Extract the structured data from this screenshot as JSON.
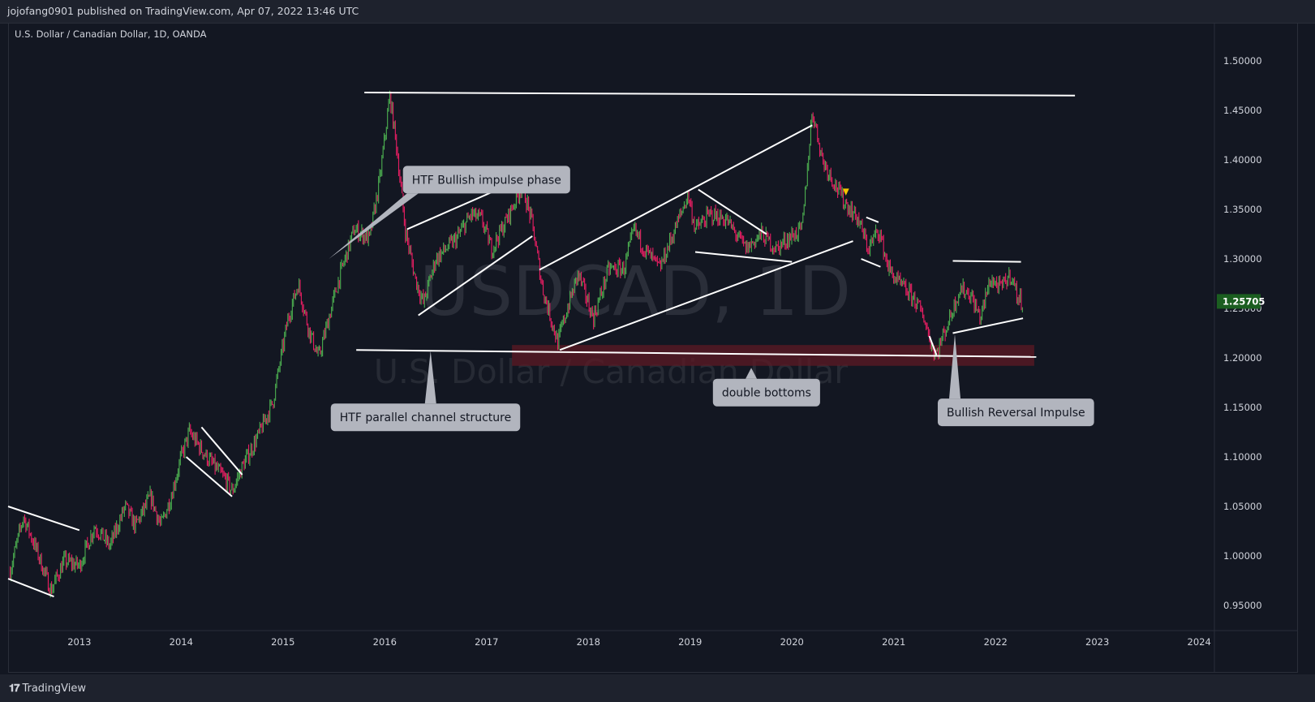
{
  "header": {
    "publish_line": "jojofang0901 published on TradingView.com, Apr 07, 2022 13:46 UTC"
  },
  "chart_header": {
    "symbol_title": "U.S. Dollar / Canadian Dollar, 1D, OANDA"
  },
  "watermark": {
    "symbol": "USDCAD, 1D",
    "description": "U.S. Dollar / Canadian Dollar"
  },
  "footer": {
    "brand": "TradingView",
    "brand_icon": "tradingview-logo-icon"
  },
  "colors": {
    "background": "#131722",
    "up_candle": "#4caf50",
    "down_candle": "#e91e63",
    "drawing": "#ffffff",
    "price_badge": "#1b5e20",
    "zone": "#5d1a24",
    "callout_bg": "#b2b5be",
    "callout_text": "#131722"
  },
  "chart_data": {
    "type": "candlestick",
    "symbol": "USDCAD",
    "timeframe": "1D",
    "x_axis": {
      "range": [
        2012.3,
        2024.15
      ],
      "tick_labels": [
        "2013",
        "2014",
        "2015",
        "2016",
        "2017",
        "2018",
        "2019",
        "2020",
        "2021",
        "2022",
        "2023",
        "2024"
      ]
    },
    "y_axis": {
      "range": [
        0.925,
        1.545
      ],
      "tick_labels": [
        "1.50000",
        "1.45000",
        "1.40000",
        "1.35000",
        "1.30000",
        "1.25000",
        "1.20000",
        "1.15000",
        "1.10000",
        "1.05000",
        "1.00000",
        "0.95000"
      ]
    },
    "last_price": "1.25705",
    "path": [
      [
        2012.32,
        0.985
      ],
      [
        2012.45,
        1.04
      ],
      [
        2012.6,
        1.0
      ],
      [
        2012.72,
        0.965
      ],
      [
        2012.85,
        0.995
      ],
      [
        2013.0,
        0.99
      ],
      [
        2013.15,
        1.03
      ],
      [
        2013.3,
        1.01
      ],
      [
        2013.45,
        1.05
      ],
      [
        2013.55,
        1.03
      ],
      [
        2013.7,
        1.06
      ],
      [
        2013.8,
        1.03
      ],
      [
        2013.9,
        1.06
      ],
      [
        2014.0,
        1.1
      ],
      [
        2014.08,
        1.125
      ],
      [
        2014.25,
        1.1
      ],
      [
        2014.45,
        1.075
      ],
      [
        2014.5,
        1.065
      ],
      [
        2014.6,
        1.09
      ],
      [
        2014.75,
        1.12
      ],
      [
        2014.9,
        1.155
      ],
      [
        2015.05,
        1.24
      ],
      [
        2015.15,
        1.275
      ],
      [
        2015.25,
        1.23
      ],
      [
        2015.35,
        1.2
      ],
      [
        2015.45,
        1.24
      ],
      [
        2015.55,
        1.28
      ],
      [
        2015.7,
        1.33
      ],
      [
        2015.85,
        1.32
      ],
      [
        2015.95,
        1.38
      ],
      [
        2016.05,
        1.465
      ],
      [
        2016.12,
        1.41
      ],
      [
        2016.2,
        1.33
      ],
      [
        2016.3,
        1.28
      ],
      [
        2016.38,
        1.255
      ],
      [
        2016.5,
        1.3
      ],
      [
        2016.6,
        1.31
      ],
      [
        2016.7,
        1.32
      ],
      [
        2016.85,
        1.345
      ],
      [
        2016.95,
        1.34
      ],
      [
        2017.05,
        1.31
      ],
      [
        2017.2,
        1.34
      ],
      [
        2017.35,
        1.375
      ],
      [
        2017.45,
        1.335
      ],
      [
        2017.55,
        1.27
      ],
      [
        2017.7,
        1.215
      ],
      [
        2017.75,
        1.235
      ],
      [
        2017.9,
        1.285
      ],
      [
        2018.05,
        1.24
      ],
      [
        2018.2,
        1.29
      ],
      [
        2018.35,
        1.29
      ],
      [
        2018.45,
        1.33
      ],
      [
        2018.55,
        1.31
      ],
      [
        2018.7,
        1.29
      ],
      [
        2018.85,
        1.33
      ],
      [
        2018.98,
        1.365
      ],
      [
        2019.05,
        1.33
      ],
      [
        2019.2,
        1.345
      ],
      [
        2019.35,
        1.34
      ],
      [
        2019.55,
        1.31
      ],
      [
        2019.7,
        1.325
      ],
      [
        2019.85,
        1.31
      ],
      [
        2019.95,
        1.32
      ],
      [
        2020.1,
        1.33
      ],
      [
        2020.2,
        1.45
      ],
      [
        2020.3,
        1.4
      ],
      [
        2020.4,
        1.38
      ],
      [
        2020.5,
        1.36
      ],
      [
        2020.65,
        1.34
      ],
      [
        2020.75,
        1.31
      ],
      [
        2020.85,
        1.33
      ],
      [
        2020.95,
        1.29
      ],
      [
        2021.05,
        1.275
      ],
      [
        2021.2,
        1.26
      ],
      [
        2021.3,
        1.24
      ],
      [
        2021.38,
        1.21
      ],
      [
        2021.42,
        1.205
      ],
      [
        2021.55,
        1.24
      ],
      [
        2021.65,
        1.27
      ],
      [
        2021.75,
        1.265
      ],
      [
        2021.85,
        1.24
      ],
      [
        2021.95,
        1.28
      ],
      [
        2022.05,
        1.27
      ],
      [
        2022.15,
        1.285
      ],
      [
        2022.22,
        1.26
      ],
      [
        2022.27,
        1.257
      ]
    ],
    "drawings": [
      {
        "kind": "line",
        "from": [
          2015.8,
          1.468
        ],
        "to": [
          2022.78,
          1.465
        ]
      },
      {
        "kind": "line",
        "from": [
          2015.72,
          1.208
        ],
        "to": [
          2022.4,
          1.201
        ]
      },
      {
        "kind": "line",
        "from": [
          2012.3,
          1.05
        ],
        "to": [
          2013.0,
          1.026
        ]
      },
      {
        "kind": "line",
        "from": [
          2012.3,
          0.977
        ],
        "to": [
          2012.75,
          0.959
        ]
      },
      {
        "kind": "line",
        "from": [
          2014.05,
          1.1
        ],
        "to": [
          2014.5,
          1.06
        ]
      },
      {
        "kind": "line",
        "from": [
          2014.2,
          1.13
        ],
        "to": [
          2014.6,
          1.082
        ]
      },
      {
        "kind": "line",
        "from": [
          2016.22,
          1.33
        ],
        "to": [
          2017.4,
          1.383
        ]
      },
      {
        "kind": "line",
        "from": [
          2016.33,
          1.243
        ],
        "to": [
          2017.45,
          1.323
        ]
      },
      {
        "kind": "line",
        "from": [
          2017.52,
          1.289
        ],
        "to": [
          2020.2,
          1.435
        ]
      },
      {
        "kind": "line",
        "from": [
          2017.72,
          1.208
        ],
        "to": [
          2020.6,
          1.318
        ]
      },
      {
        "kind": "line",
        "from": [
          2019.08,
          1.37
        ],
        "to": [
          2019.75,
          1.325
        ]
      },
      {
        "kind": "line",
        "from": [
          2019.05,
          1.307
        ],
        "to": [
          2020.0,
          1.297
        ]
      },
      {
        "kind": "line",
        "from": [
          2020.73,
          1.342
        ],
        "to": [
          2020.85,
          1.337
        ]
      },
      {
        "kind": "line",
        "from": [
          2020.68,
          1.3
        ],
        "to": [
          2020.87,
          1.292
        ]
      },
      {
        "kind": "line",
        "from": [
          2021.58,
          1.298
        ],
        "to": [
          2022.25,
          1.297
        ]
      },
      {
        "kind": "line",
        "from": [
          2021.58,
          1.225
        ],
        "to": [
          2022.27,
          1.24
        ]
      },
      {
        "kind": "line",
        "from": [
          2021.35,
          1.222
        ],
        "to": [
          2021.42,
          1.203
        ]
      },
      {
        "kind": "zone",
        "x": [
          2017.25,
          2022.38
        ],
        "y": [
          1.192,
          1.213
        ]
      }
    ],
    "annotations": [
      {
        "text": "HTF Bullish impulse phase",
        "anchor": [
          2017.0,
          1.38
        ],
        "pointer_to": [
          2015.45,
          1.3
        ]
      },
      {
        "text": "HTF parallel channel structure",
        "anchor": [
          2016.4,
          1.14
        ],
        "pointer_to": [
          2016.45,
          1.207
        ]
      },
      {
        "text": "double bottoms",
        "anchor": [
          2019.75,
          1.165
        ],
        "pointer_to": [
          2019.6,
          1.19
        ]
      },
      {
        "text": "Bullish Reversal Impulse",
        "anchor": [
          2022.2,
          1.145
        ],
        "pointer_to": [
          2021.6,
          1.224
        ]
      }
    ]
  }
}
